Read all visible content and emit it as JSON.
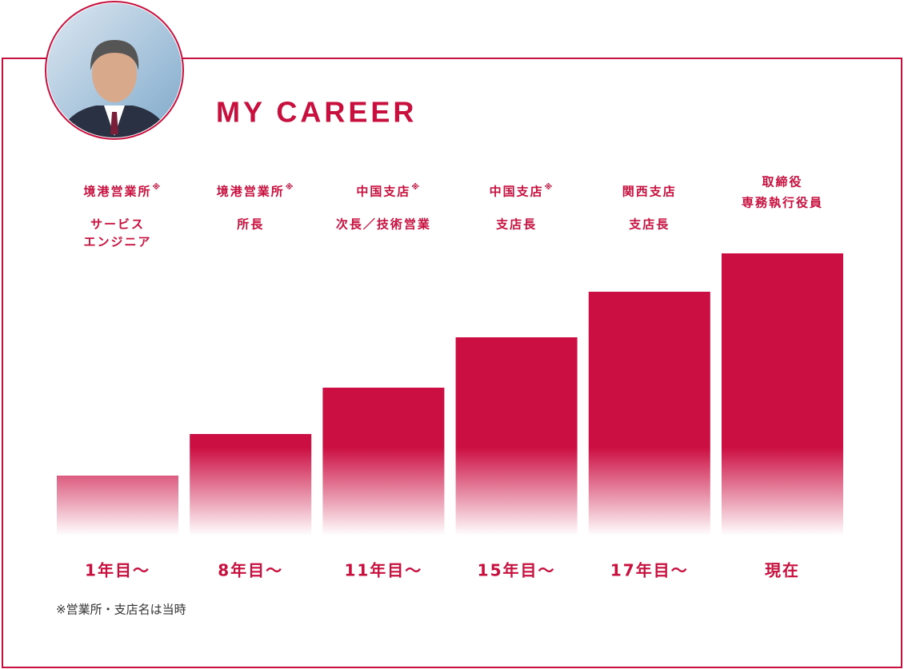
{
  "title": "MY CAREER",
  "steps": [
    {
      "office": [
        "境港営業所"
      ],
      "mark": "※",
      "position": [
        "サービス",
        "エンジニア"
      ],
      "period": "1年目～"
    },
    {
      "office": [
        "境港営業所"
      ],
      "mark": "※",
      "position": [
        "所長"
      ],
      "period": "8年目～"
    },
    {
      "office": [
        "中国支店"
      ],
      "mark": "※",
      "position": [
        "次長／技術営業"
      ],
      "period": "11年目～"
    },
    {
      "office": [
        "中国支店"
      ],
      "mark": "※",
      "position": [
        "支店長"
      ],
      "period": "15年目～"
    },
    {
      "office": [
        "関西支店"
      ],
      "position": [
        "支店長"
      ],
      "period": "17年目～"
    },
    {
      "office": [
        "取締役",
        "専務執行役員"
      ],
      "period": "現在"
    }
  ],
  "note": "※営業所・支店名は当時"
}
